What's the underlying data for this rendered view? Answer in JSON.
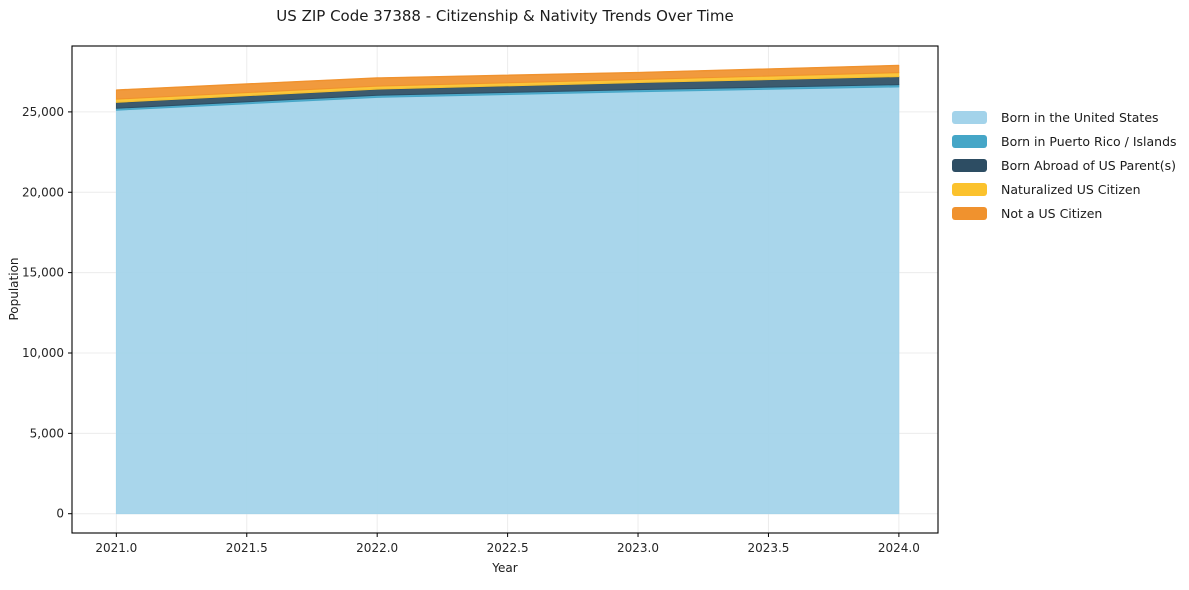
{
  "chart_data": {
    "type": "area",
    "stacked": true,
    "title": "US ZIP Code 37388 - Citizenship & Nativity Trends Over Time",
    "xlabel": "Year",
    "ylabel": "Population",
    "x": [
      2021,
      2022,
      2023,
      2024
    ],
    "series": [
      {
        "name": "Born in the United States",
        "color": "#a3d3ea",
        "values": [
          25100,
          25900,
          26250,
          26550
        ]
      },
      {
        "name": "Born in Puerto Rico / Islands",
        "color": "#45a6c7",
        "values": [
          120,
          130,
          130,
          140
        ]
      },
      {
        "name": "Born Abroad of US Parent(s)",
        "color": "#2d4d63",
        "values": [
          370,
          380,
          440,
          500
        ]
      },
      {
        "name": "Naturalized US Citizen",
        "color": "#fbc22d",
        "values": [
          200,
          190,
          190,
          250
        ]
      },
      {
        "name": "Not a US Citizen",
        "color": "#f0922e",
        "values": [
          570,
          510,
          440,
          450
        ]
      }
    ],
    "xlim": [
      2020.83,
      2024.15
    ],
    "ylim": [
      -1200,
      29100
    ],
    "x_ticks": [
      {
        "value": 2021.0,
        "label": "2021.0"
      },
      {
        "value": 2021.5,
        "label": "2021.5"
      },
      {
        "value": 2022.0,
        "label": "2022.0"
      },
      {
        "value": 2022.5,
        "label": "2022.5"
      },
      {
        "value": 2023.0,
        "label": "2023.0"
      },
      {
        "value": 2023.5,
        "label": "2023.5"
      },
      {
        "value": 2024.0,
        "label": "2024.0"
      }
    ],
    "y_ticks": [
      {
        "value": 0,
        "label": "0"
      },
      {
        "value": 5000,
        "label": "5,000"
      },
      {
        "value": 10000,
        "label": "10,000"
      },
      {
        "value": 15000,
        "label": "15,000"
      },
      {
        "value": 20000,
        "label": "20,000"
      },
      {
        "value": 25000,
        "label": "25,000"
      }
    ],
    "grid": true,
    "legend_position": "right",
    "colors": {
      "gridline": "#ececec",
      "frame": "#000000",
      "text": "#1c1c1c"
    }
  }
}
